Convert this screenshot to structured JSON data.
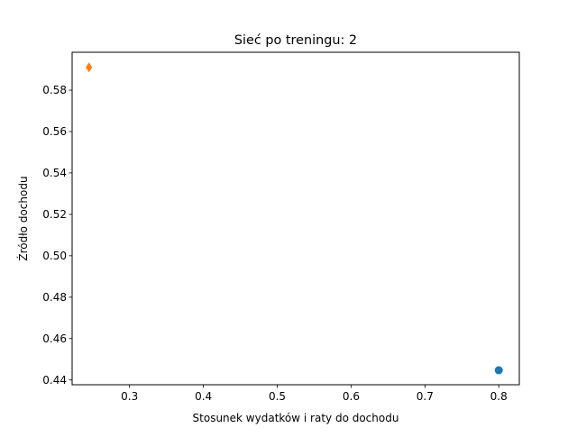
{
  "chart_data": {
    "type": "scatter",
    "title": "Sieć po treningu: 2",
    "xlabel": "Stosunek wydatków i raty do dochodu",
    "ylabel": "Źródło dochodu",
    "xlim": [
      0.2222,
      0.8278
    ],
    "ylim": [
      0.4377,
      0.5983
    ],
    "x_ticks": [
      0.3,
      0.4,
      0.5,
      0.6,
      0.7,
      0.8
    ],
    "x_tick_labels": [
      "0.3",
      "0.4",
      "0.5",
      "0.6",
      "0.7",
      "0.8"
    ],
    "y_ticks": [
      0.44,
      0.46,
      0.48,
      0.5,
      0.52,
      0.54,
      0.56,
      0.58
    ],
    "y_tick_labels": [
      "0.44",
      "0.46",
      "0.48",
      "0.50",
      "0.52",
      "0.54",
      "0.56",
      "0.58"
    ],
    "grid": false,
    "series": [
      {
        "marker": "circle",
        "color": "#1f77b4",
        "points": [
          {
            "x": 0.8,
            "y": 0.4447
          }
        ]
      },
      {
        "marker": "thin-diamond",
        "color": "#ff7f0e",
        "points": [
          {
            "x": 0.245,
            "y": 0.591
          }
        ]
      }
    ]
  }
}
